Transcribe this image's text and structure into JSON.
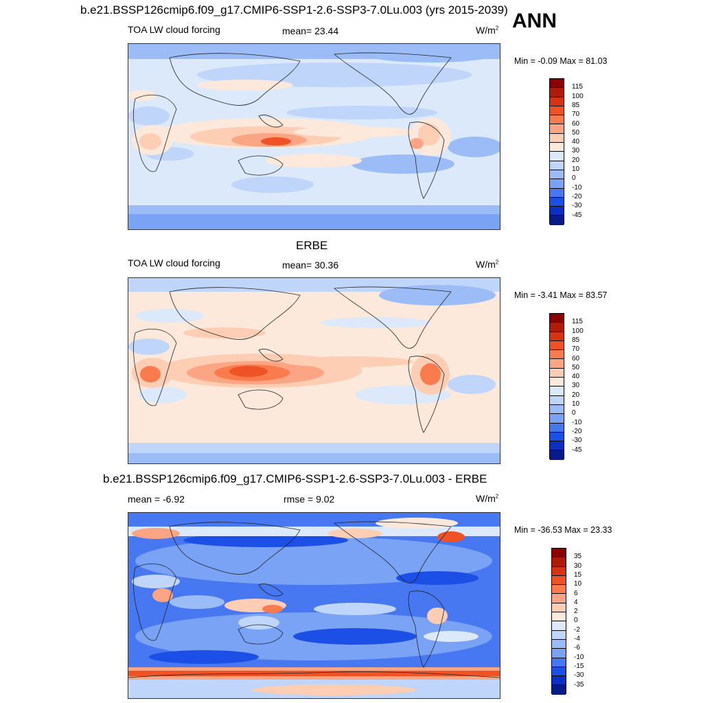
{
  "figure": {
    "title": "b.e21.BSSP126cmip6.f09_g17.CMIP6-SSP1-2.6-SSP3-7.0Lu.003 (yrs 2015-2039)",
    "season": "ANN"
  },
  "panel1": {
    "left": "TOA LW cloud forcing",
    "mean": "mean=  23.44",
    "units": "W/m",
    "units_sup": "2",
    "minmax": "Min =  -0.09 Max =  81.03"
  },
  "panel2": {
    "title": "ERBE",
    "left": "TOA LW cloud forcing",
    "mean": "mean=  30.36",
    "units": "W/m",
    "units_sup": "2",
    "minmax": "Min =  -3.41 Max =  83.57"
  },
  "panel3": {
    "title": "b.e21.BSSP126cmip6.f09_g17.CMIP6-SSP1-2.6-SSP3-7.0Lu.003 - ERBE",
    "mean": "mean =  -6.92",
    "rmse": "rmse =   9.02",
    "units": "W/m",
    "units_sup": "2",
    "minmax": "Min = -36.53 Max =  23.33"
  },
  "colorbar_main": {
    "labels": [
      "115",
      "100",
      "85",
      "70",
      "60",
      "50",
      "40",
      "30",
      "20",
      "10",
      "0",
      "-10",
      "-20",
      "-30",
      "-45"
    ],
    "colors": [
      "#8b0000",
      "#b01a0a",
      "#d63313",
      "#ef5224",
      "#fa7b4e",
      "#fca585",
      "#fdcdb4",
      "#fde8dc",
      "#dbe9fb",
      "#bfd6fa",
      "#9cbcf7",
      "#7aa2f5",
      "#4877f2",
      "#1c4fe6",
      "#0a2fc2",
      "#061a8a"
    ]
  },
  "colorbar_diff": {
    "labels": [
      "35",
      "30",
      "15",
      "10",
      "6",
      "4",
      "2",
      "0",
      "-2",
      "-4",
      "-6",
      "-10",
      "-15",
      "-30",
      "-35"
    ],
    "colors": [
      "#8b0000",
      "#b01a0a",
      "#d63313",
      "#ef5224",
      "#fa7b4e",
      "#fca585",
      "#fdcdb4",
      "#fde8dc",
      "#dbe9fb",
      "#bfd6fa",
      "#9cbcf7",
      "#7aa2f5",
      "#4877f2",
      "#1c4fe6",
      "#0a2fc2",
      "#061a8a"
    ]
  },
  "chart_data": [
    {
      "type": "heatmap",
      "title": "TOA LW cloud forcing",
      "mean": 23.44,
      "min": -0.09,
      "max": 81.03,
      "units": "W/m2",
      "levels": [
        -45,
        -30,
        -20,
        -10,
        0,
        10,
        20,
        30,
        40,
        50,
        60,
        70,
        85,
        100,
        115
      ],
      "map": "global, Pacific-centered"
    },
    {
      "type": "heatmap",
      "title": "ERBE",
      "mean": 30.36,
      "min": -3.41,
      "max": 83.57,
      "units": "W/m2",
      "levels": [
        -45,
        -30,
        -20,
        -10,
        0,
        10,
        20,
        30,
        40,
        50,
        60,
        70,
        85,
        100,
        115
      ],
      "map": "global, Pacific-centered"
    },
    {
      "type": "heatmap",
      "title": "b.e21.BSSP126cmip6.f09_g17.CMIP6-SSP1-2.6-SSP3-7.0Lu.003 - ERBE",
      "mean": -6.92,
      "rmse": 9.02,
      "min": -36.53,
      "max": 23.33,
      "units": "W/m2",
      "levels": [
        -35,
        -30,
        -15,
        -10,
        -6,
        -4,
        -2,
        0,
        2,
        4,
        6,
        10,
        15,
        30,
        35
      ],
      "map": "global, Pacific-centered"
    }
  ]
}
